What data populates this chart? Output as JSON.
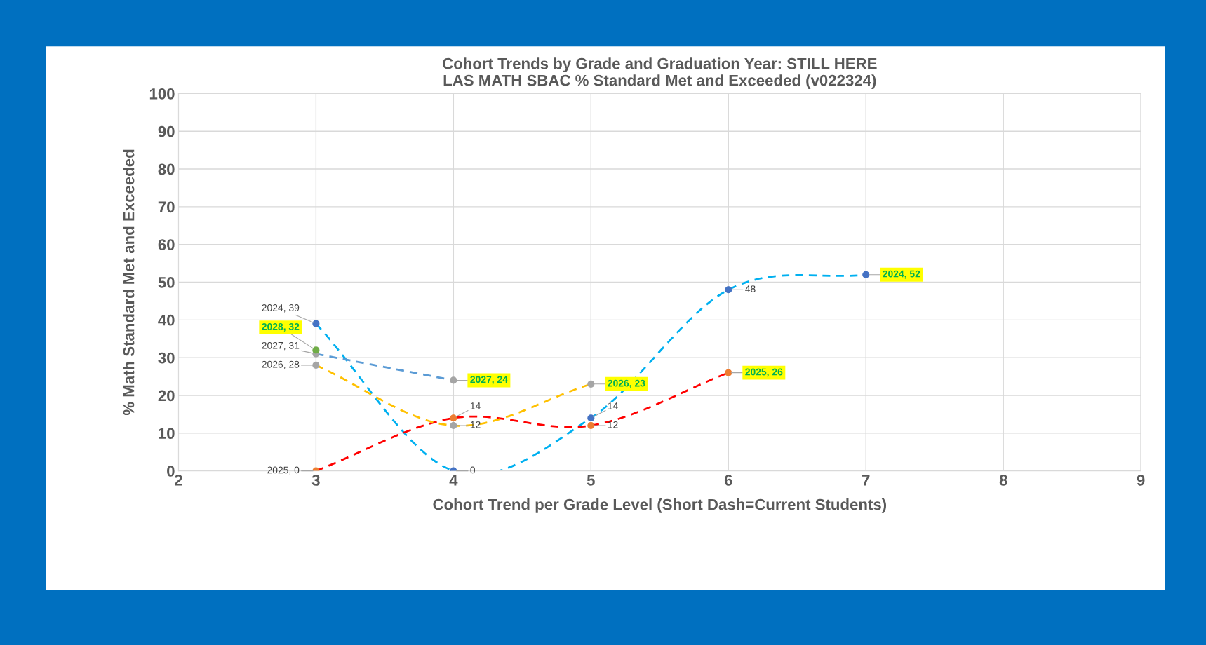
{
  "chart_data": {
    "type": "line",
    "title": "Cohort Trends by Grade and Graduation Year: STILL HERE\nLAS MATH SBAC % Standard Met and Exceeded (v022324)",
    "xlabel": "Cohort Trend per Grade Level (Short Dash=Current Students)",
    "ylabel": "% Math Standard Met and Exceeded",
    "xlim": [
      2,
      9
    ],
    "xticks": [
      2,
      3,
      4,
      5,
      6,
      7,
      8,
      9
    ],
    "ylim": [
      0,
      100
    ],
    "yticks": [
      0,
      10,
      20,
      30,
      40,
      50,
      60,
      70,
      80,
      90,
      100
    ],
    "grid": true,
    "legend": false,
    "marker": "circle",
    "line_style": "dashed",
    "series": [
      {
        "x": [
          3,
          4,
          5,
          6,
          7
        ],
        "values": [
          39,
          0,
          14,
          48,
          52
        ],
        "color": "#00b0f0",
        "colors": [
          "#4472c4",
          "#4472c4",
          "#4472c4",
          "#4472c4",
          "#4472c4"
        ],
        "value_labels": [
          "2024, 39",
          "0",
          "14",
          "48",
          "2024, 52"
        ]
      },
      {
        "x": [
          3,
          4,
          5,
          6
        ],
        "values": [
          0,
          14,
          12,
          26
        ],
        "color": "#ff0000",
        "colors": [
          "#ed7d31",
          "#ed7d31",
          "#ed7d31",
          "#ed7d31"
        ],
        "value_labels": [
          "2025, 0",
          "14",
          "12",
          "2025, 26"
        ]
      },
      {
        "x": [
          3,
          4,
          5
        ],
        "values": [
          28,
          12,
          23
        ],
        "color": "#ffc000",
        "colors": [
          "#a5a5a5",
          "#a5a5a5",
          "#a5a5a5"
        ],
        "value_labels": [
          "2026, 28",
          "12",
          "2026, 23"
        ]
      },
      {
        "x": [
          3,
          4
        ],
        "values": [
          31,
          24
        ],
        "color": "#5b9bd5",
        "colors": [
          "#a5a5a5",
          "#a5a5a5"
        ],
        "value_labels": [
          "2027, 31",
          "2027, 24"
        ]
      },
      {
        "x": [
          3
        ],
        "values": [
          32
        ],
        "color": "#70ad47",
        "colors": [
          "#70ad47"
        ],
        "value_labels": [
          "2028, 32"
        ]
      }
    ]
  }
}
